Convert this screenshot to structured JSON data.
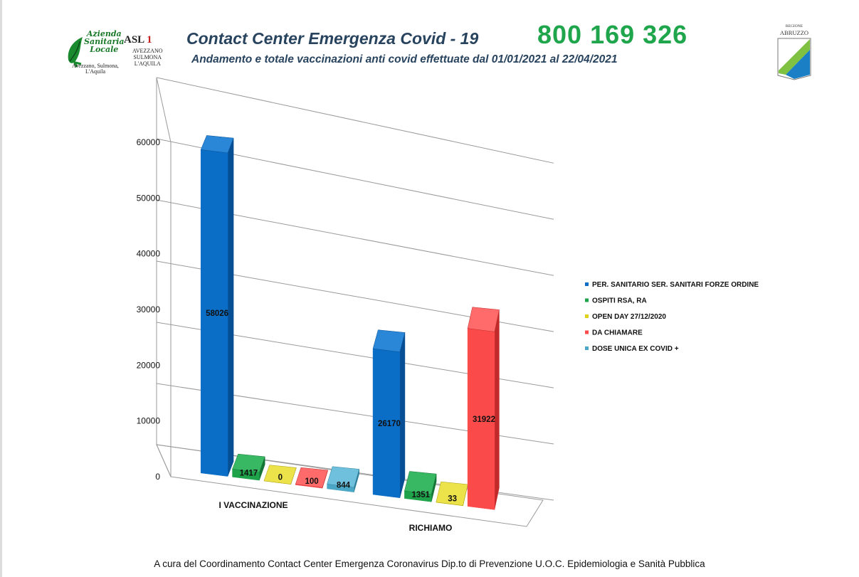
{
  "header": {
    "asl_logo": {
      "azienda_lines": [
        "Azienda",
        "Sanitaria",
        "Locale"
      ],
      "asl": "ASL",
      "asl_number": "1",
      "cities": [
        "AVEZZANO",
        "SULMONA",
        "L'AQUILA"
      ],
      "subline": [
        "Avezzano, Sulmona,",
        "L'Aquila"
      ]
    },
    "title": "Contact Center Emergenza Covid - 19",
    "phone": "800 169 326",
    "subtitle": "Andamento e totale vaccinazioni anti covid effettuate dal 01/01/2021 al 22/04/2021",
    "region_logo": {
      "line1": "REGIONE",
      "line2": "ABRUZZO"
    }
  },
  "chart_data": {
    "type": "bar",
    "style": "3d-clustered-column",
    "categories": [
      "I VACCINAZIONE",
      "RICHIAMO"
    ],
    "ylim": [
      0,
      60000
    ],
    "yticks": [
      0,
      10000,
      20000,
      30000,
      40000,
      50000,
      60000
    ],
    "grid": true,
    "legend_position": "right",
    "series": [
      {
        "name": "PER. SANITARIO SER. SANITARI FORZE ORDINE",
        "values": [
          58026,
          26170
        ],
        "color": "#0a6dc6",
        "side": "#074f94",
        "top": "#2a87d8"
      },
      {
        "name": "OSPITI RSA, RA",
        "values": [
          1417,
          1351
        ],
        "color": "#1ea34b",
        "side": "#147536",
        "top": "#38b862"
      },
      {
        "name": "OPEN DAY 27/12/2020",
        "values": [
          0,
          33
        ],
        "color": "#e0d21a",
        "side": "#a89c10",
        "top": "#ece34a"
      },
      {
        "name": "DA CHIAMARE",
        "values": [
          100,
          31922
        ],
        "color": "#fb4a4a",
        "side": "#c22a2a",
        "top": "#ff6a6a"
      },
      {
        "name": "DOSE UNICA EX COVID +",
        "values": [
          844,
          null
        ],
        "color": "#4aa7c6",
        "side": "#2f7f9a",
        "top": "#6ec0dc"
      }
    ],
    "data_labels": [
      {
        "series": 0,
        "category": 0,
        "text": "58026"
      },
      {
        "series": 1,
        "category": 0,
        "text": "1417"
      },
      {
        "series": 2,
        "category": 0,
        "text": "0"
      },
      {
        "series": 3,
        "category": 0,
        "text": "100"
      },
      {
        "series": 4,
        "category": 0,
        "text": "844"
      },
      {
        "series": 0,
        "category": 1,
        "text": "26170"
      },
      {
        "series": 1,
        "category": 1,
        "text": "1351"
      },
      {
        "series": 2,
        "category": 1,
        "text": "33"
      },
      {
        "series": 3,
        "category": 1,
        "text": "31922"
      }
    ]
  },
  "footer": "A cura del Coordinamento Contact Center Emergenza Coronavirus  Dip.to di Prevenzione U.O.C. Epidemiologia e Sanità Pubblica"
}
